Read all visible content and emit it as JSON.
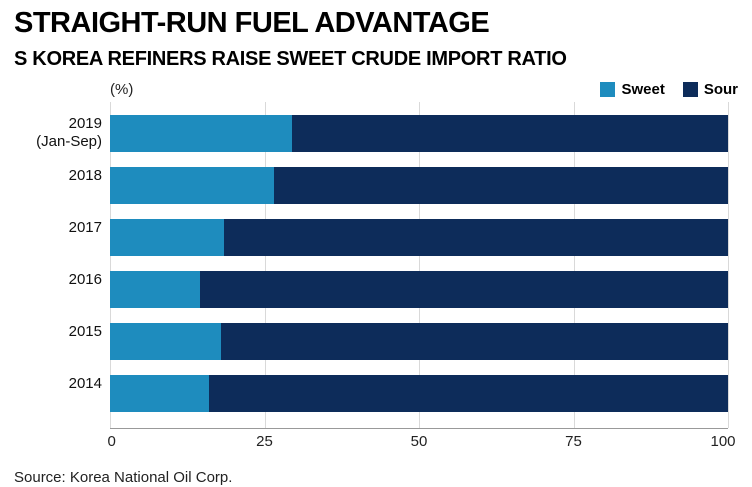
{
  "header": {
    "title": "STRAIGHT-RUN FUEL ADVANTAGE",
    "subtitle": "S KOREA REFINERS RAISE SWEET CRUDE IMPORT RATIO"
  },
  "chart": {
    "unit_label": "(%)",
    "legend": [
      {
        "label": "Sweet",
        "color": "#1e8cbe"
      },
      {
        "label": "Sour",
        "color": "#0d2c5a"
      }
    ]
  },
  "chart_data": {
    "type": "bar",
    "orientation": "horizontal",
    "stacked": true,
    "title": "STRAIGHT-RUN FUEL ADVANTAGE",
    "subtitle": "S KOREA REFINERS RAISE SWEET CRUDE IMPORT RATIO",
    "categories": [
      "2019 (Jan-Sep)",
      "2018",
      "2017",
      "2016",
      "2015",
      "2014"
    ],
    "category_display": [
      [
        "2019",
        "(Jan-Sep)"
      ],
      [
        "2018"
      ],
      [
        "2017"
      ],
      [
        "2016"
      ],
      [
        "2015"
      ],
      [
        "2014"
      ]
    ],
    "series": [
      {
        "name": "Sweet",
        "color": "#1e8cbe",
        "values": [
          29.5,
          26.5,
          18.5,
          14.5,
          18,
          16
        ]
      },
      {
        "name": "Sour",
        "color": "#0d2c5a",
        "values": [
          70.5,
          73.5,
          81.5,
          85.5,
          82,
          84
        ]
      }
    ],
    "xlabel": "(%)",
    "ylabel": "",
    "xlim": [
      0,
      100
    ],
    "xticks": [
      0,
      25,
      50,
      75,
      100
    ],
    "grid": true,
    "legend_position": "top-right"
  },
  "footer": {
    "source": "Source: Korea National Oil Corp."
  }
}
